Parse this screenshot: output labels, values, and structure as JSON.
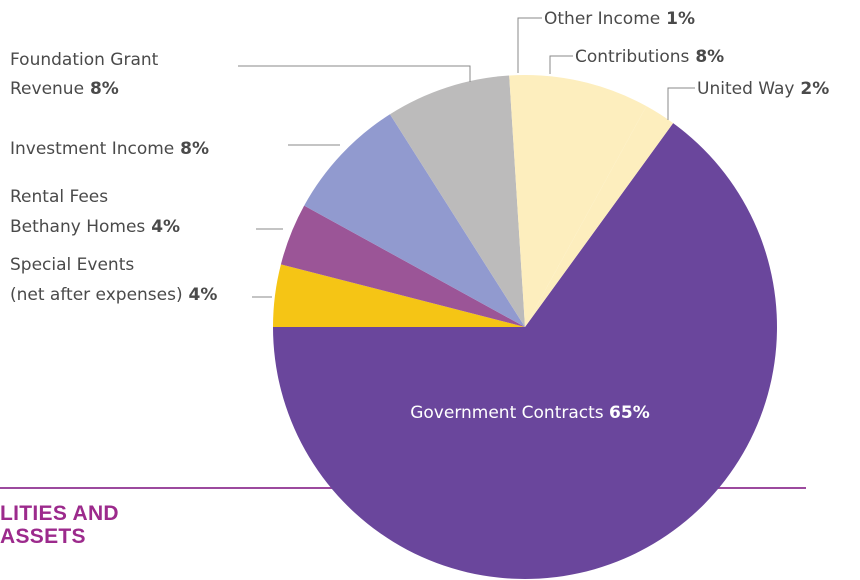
{
  "chart_data": {
    "type": "pie",
    "slices": [
      {
        "key": "government",
        "label": "Government Contracts",
        "value": 65,
        "value_label": "65%",
        "color": "#6a469c"
      },
      {
        "key": "special-events",
        "label_lines": [
          "Special Events",
          "(net after expenses)"
        ],
        "value": 4,
        "value_label": "4%",
        "color": "#f5c515"
      },
      {
        "key": "rental-fees",
        "label_lines": [
          "Rental Fees",
          "Bethany Homes"
        ],
        "value": 4,
        "value_label": "4%",
        "color": "#9b5597"
      },
      {
        "key": "investment",
        "label_lines": [
          "Investment Income"
        ],
        "value": 8,
        "value_label": "8%",
        "color": "#919acf"
      },
      {
        "key": "foundation",
        "label_lines": [
          "Foundation Grant",
          "Revenue"
        ],
        "value": 8,
        "value_label": "8%",
        "color": "#bcbbbb"
      },
      {
        "key": "other-income",
        "label_lines": [
          "Other Income"
        ],
        "value": 1,
        "value_label": "1%",
        "color": "#fdeebe"
      },
      {
        "key": "contributions",
        "label_lines": [
          "Contributions"
        ],
        "value": 8,
        "value_label": "8%",
        "color": "#fdeebe"
      },
      {
        "key": "united-way",
        "label_lines": [
          "United Way"
        ],
        "value": 2,
        "value_label": "2%",
        "color": "#fdeebe"
      }
    ]
  },
  "section_heading": {
    "line1": "LITIES AND",
    "line2": "ASSETS"
  }
}
